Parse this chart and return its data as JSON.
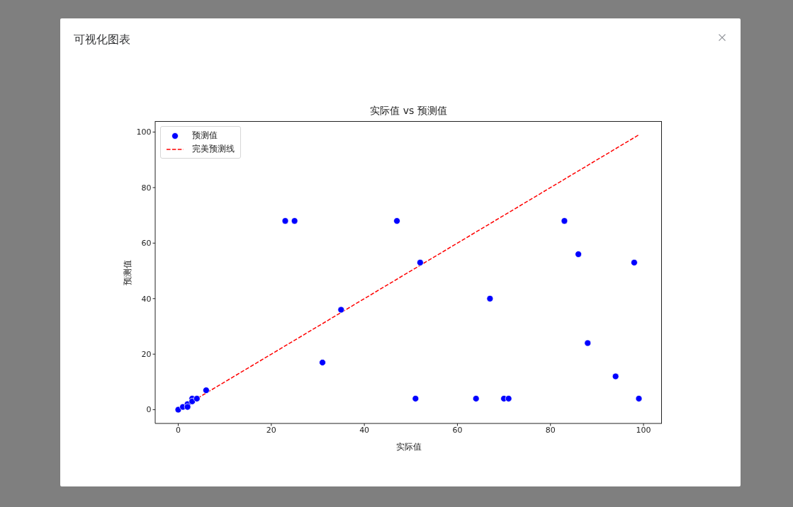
{
  "chart_data": {
    "type": "scatter",
    "title": "实际值 vs 预测值",
    "xlabel": "实际值",
    "ylabel": "预测值",
    "annotations": [
      "可视化图表"
    ],
    "xlim": [
      -4.95,
      103.95
    ],
    "ylim": [
      -4.95,
      103.95
    ],
    "xticks": [
      0,
      20,
      40,
      60,
      80,
      100
    ],
    "yticks": [
      0,
      20,
      40,
      60,
      80,
      100
    ],
    "legend": "top left",
    "series": [
      {
        "name": "预测值",
        "type": "scatter",
        "color": "#0000ff",
        "marker": "circle",
        "x": [
          0,
          1,
          2,
          2,
          3,
          3,
          4,
          6,
          23,
          25,
          31,
          35,
          47,
          51,
          52,
          64,
          67,
          70,
          71,
          83,
          86,
          88,
          94,
          98,
          99
        ],
        "values": [
          0,
          1,
          2,
          1,
          4,
          3,
          4,
          7,
          68,
          68,
          17,
          36,
          68,
          4,
          53,
          4,
          40,
          4,
          4,
          68,
          56,
          24,
          12,
          53,
          4
        ]
      },
      {
        "name": "完美预测线",
        "type": "line",
        "color": "#ff0000",
        "line_style": "dashed",
        "marker": "none",
        "x": [
          0,
          99
        ],
        "values": [
          0,
          99
        ]
      }
    ]
  }
}
